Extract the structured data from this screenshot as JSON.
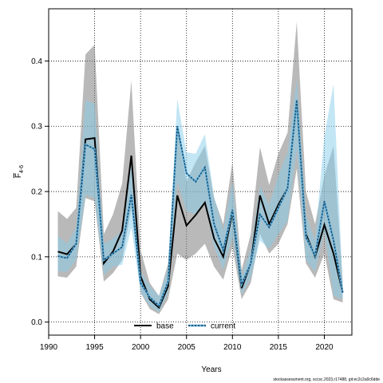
{
  "chart_data": {
    "type": "line",
    "xlabel": "Years",
    "ylabel": "F",
    "ylabel_subscript": "4-6",
    "xlim": [
      1990,
      2023
    ],
    "ylim": [
      -0.02,
      0.48
    ],
    "xticks": [
      1990,
      1995,
      2000,
      2005,
      2010,
      2015,
      2020
    ],
    "yticks": [
      0.0,
      0.1,
      0.2,
      0.3,
      0.4
    ],
    "ytick_labels": [
      "0.0",
      "0.1",
      "0.2",
      "0.3",
      "0.4"
    ],
    "grid": true,
    "legend_position": "bottom",
    "footnote": "stockassessment.org, sccsc.2023,r17488, git:ec2c2a0c6dde",
    "x": [
      1991,
      1992,
      1993,
      1994,
      1995,
      1996,
      1997,
      1998,
      1999,
      2000,
      2001,
      2002,
      2003,
      2004,
      2005,
      2006,
      2007,
      2008,
      2009,
      2010,
      2011,
      2012,
      2013,
      2014,
      2015,
      2016,
      2017,
      2018,
      2019,
      2020,
      2021,
      2022
    ],
    "series": [
      {
        "name": "base",
        "color": "#000000",
        "band_color": "#808080",
        "values": [
          0.108,
          0.104,
          0.12,
          0.28,
          0.282,
          0.09,
          0.108,
          0.14,
          0.255,
          0.07,
          0.035,
          0.022,
          0.055,
          0.194,
          0.148,
          0.164,
          0.183,
          0.128,
          0.1,
          0.168,
          0.052,
          0.09,
          0.194,
          0.15,
          0.18,
          0.205,
          0.34,
          0.135,
          0.1,
          0.149,
          0.105,
          0.045
        ],
        "lower": [
          0.07,
          0.068,
          0.085,
          0.19,
          0.185,
          0.062,
          0.075,
          0.095,
          0.175,
          0.045,
          0.02,
          0.012,
          0.035,
          0.105,
          0.095,
          0.105,
          0.12,
          0.085,
          0.065,
          0.115,
          0.035,
          0.06,
          0.135,
          0.105,
          0.12,
          0.15,
          0.235,
          0.09,
          0.068,
          0.105,
          0.035,
          0.03
        ],
        "upper": [
          0.17,
          0.158,
          0.175,
          0.41,
          0.425,
          0.135,
          0.165,
          0.212,
          0.37,
          0.11,
          0.06,
          0.04,
          0.09,
          0.295,
          0.215,
          0.245,
          0.27,
          0.19,
          0.15,
          0.245,
          0.08,
          0.135,
          0.268,
          0.21,
          0.258,
          0.29,
          0.46,
          0.2,
          0.15,
          0.225,
          0.27,
          0.062
        ]
      },
      {
        "name": "current",
        "color": "#1a3a5a",
        "band_color": "#87ceeb",
        "values": [
          0.101,
          0.098,
          0.12,
          0.272,
          0.265,
          0.095,
          0.105,
          0.115,
          0.195,
          0.06,
          0.038,
          0.025,
          0.062,
          0.3,
          0.228,
          0.215,
          0.237,
          0.15,
          0.11,
          0.172,
          0.058,
          0.09,
          0.165,
          0.145,
          0.175,
          0.205,
          0.34,
          0.13,
          0.102,
          0.185,
          0.125,
          0.045
        ],
        "lower": [
          0.078,
          0.077,
          0.095,
          0.195,
          0.19,
          0.072,
          0.085,
          0.088,
          0.145,
          0.045,
          0.025,
          0.015,
          0.045,
          0.215,
          0.17,
          0.165,
          0.185,
          0.115,
          0.08,
          0.13,
          0.042,
          0.068,
          0.125,
          0.112,
          0.135,
          0.155,
          0.265,
          0.095,
          0.077,
          0.14,
          0.04,
          0.035
        ],
        "upper": [
          0.132,
          0.12,
          0.145,
          0.34,
          0.335,
          0.12,
          0.128,
          0.14,
          0.245,
          0.078,
          0.055,
          0.04,
          0.082,
          0.342,
          0.26,
          0.258,
          0.288,
          0.192,
          0.14,
          0.215,
          0.072,
          0.112,
          0.208,
          0.18,
          0.225,
          0.26,
          0.372,
          0.165,
          0.125,
          0.285,
          0.365,
          0.058
        ]
      }
    ]
  }
}
